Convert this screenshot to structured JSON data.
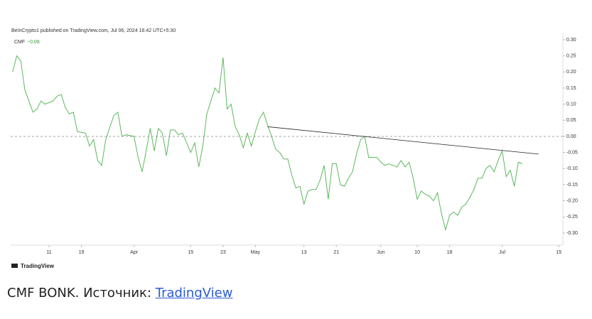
{
  "chart_data": {
    "type": "line",
    "title": "BeInCrypto1 published on TradingView.com, Jul 06, 2024 16:42 UTC+5:30",
    "legend_label": "CMF",
    "last_value_label": "−0.08",
    "brand": "TradingView",
    "caption": "CMF BONK. Источник:",
    "caption_link": "TradingView",
    "x": [
      2,
      3,
      4,
      5,
      7,
      8,
      9,
      10,
      12,
      13,
      14,
      15,
      16,
      17,
      18,
      20,
      21,
      22,
      23,
      24,
      25,
      27,
      28,
      29,
      30,
      32,
      33,
      34,
      35,
      36,
      37,
      38,
      39,
      40,
      41,
      42,
      43,
      44,
      46,
      47,
      48,
      49,
      50,
      52,
      53,
      54,
      55,
      56,
      57,
      58,
      59,
      60,
      61,
      62,
      63,
      64,
      65,
      66,
      67,
      68,
      69,
      70,
      71,
      72,
      73,
      74,
      75,
      76,
      77,
      78,
      79,
      80,
      81,
      82,
      83,
      84,
      85,
      86,
      87,
      88,
      89,
      90,
      91,
      92,
      93,
      94,
      95,
      97,
      98,
      99,
      100,
      101,
      102,
      103,
      104,
      105,
      106,
      107,
      108,
      109,
      110,
      111,
      112,
      113,
      114,
      115,
      116,
      117,
      118,
      119,
      120,
      121,
      122,
      123,
      124,
      125,
      126,
      127,
      128
    ],
    "series": [
      {
        "name": "CMF",
        "color": "#5cb85c",
        "values": [
          0.2,
          0.25,
          0.235,
          0.145,
          0.075,
          0.085,
          0.11,
          0.1,
          0.11,
          0.125,
          0.13,
          0.09,
          0.07,
          0.075,
          0.015,
          0.01,
          -0.03,
          -0.01,
          -0.075,
          -0.09,
          -0.01,
          0.065,
          0.075,
          0,
          0.005,
          0,
          -0.065,
          -0.11,
          -0.045,
          0.025,
          -0.045,
          0.025,
          0.01,
          -0.06,
          0.02,
          0.02,
          0.005,
          0.01,
          -0.05,
          -0.02,
          -0.095,
          -0.03,
          0.07,
          0.15,
          0.135,
          0.245,
          0.085,
          0.1,
          0.03,
          0.005,
          -0.035,
          0.01,
          -0.03,
          0.015,
          0.055,
          0.075,
          0.035,
          0,
          -0.04,
          -0.05,
          -0.07,
          -0.07,
          -0.12,
          -0.16,
          -0.155,
          -0.21,
          -0.17,
          -0.165,
          -0.165,
          -0.135,
          -0.09,
          -0.195,
          -0.085,
          -0.085,
          -0.15,
          -0.155,
          -0.13,
          -0.11,
          -0.055,
          -0.01,
          0,
          -0.065,
          -0.065,
          -0.065,
          -0.08,
          -0.09,
          -0.085,
          -0.095,
          -0.075,
          -0.095,
          -0.08,
          -0.13,
          -0.195,
          -0.17,
          -0.18,
          -0.185,
          -0.2,
          -0.175,
          -0.24,
          -0.29,
          -0.245,
          -0.235,
          -0.245,
          -0.22,
          -0.21,
          -0.19,
          -0.165,
          -0.13,
          -0.13,
          -0.1,
          -0.09,
          -0.11,
          -0.075,
          -0.045,
          -0.125,
          -0.105,
          -0.155,
          -0.08,
          -0.085
        ]
      }
    ],
    "trendline": {
      "color": "#222222",
      "x": [
        65,
        132
      ],
      "values": [
        0.03,
        -0.055
      ]
    },
    "xlim": [
      1.5,
      138
    ],
    "xticks": [
      11,
      19,
      {
        "value": 32,
        "label": "Apr"
      },
      {
        "value": 46,
        "label": "15"
      },
      {
        "value": 54,
        "label": "23"
      },
      {
        "value": 62,
        "label": "May"
      },
      {
        "value": 74,
        "label": "13"
      },
      {
        "value": 82,
        "label": "21"
      },
      {
        "value": 93,
        "label": "Jun"
      },
      {
        "value": 102,
        "label": "10"
      },
      {
        "value": 110,
        "label": "18"
      },
      {
        "value": 123,
        "label": "Jul"
      },
      {
        "value": 137,
        "label": "15"
      }
    ],
    "ylim": [
      -0.3375,
      0.3175
    ],
    "yticks": [
      {
        "value": 0.3,
        "label": "0.30"
      },
      {
        "value": 0.25,
        "label": "0.25"
      },
      {
        "value": 0.2,
        "label": "0.20"
      },
      {
        "value": 0.15,
        "label": "0.15"
      },
      {
        "value": 0.1,
        "label": "0.10"
      },
      {
        "value": 0.05,
        "label": "0.05"
      },
      {
        "value": 0,
        "label": "0.00"
      },
      {
        "value": -0.05,
        "label": "-0.05"
      },
      {
        "value": -0.1,
        "label": "-0.10"
      },
      {
        "value": -0.15,
        "label": "-0.15"
      },
      {
        "value": -0.2,
        "label": "-0.20"
      },
      {
        "value": -0.25,
        "label": "-0.25"
      },
      {
        "value": -0.3,
        "label": "-0.30"
      }
    ],
    "zero_line_dashed": true
  }
}
